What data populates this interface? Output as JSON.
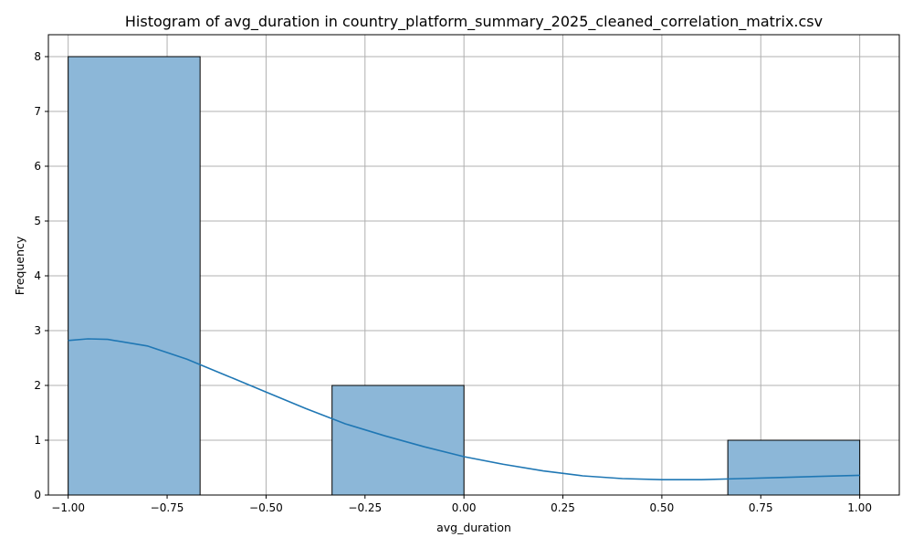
{
  "chart_data": {
    "type": "bar",
    "title": "Histogram of avg_duration in country_platform_summary_2025_cleaned_correlation_matrix.csv",
    "xlabel": "avg_duration",
    "ylabel": "Frequency",
    "xlim": [
      -1.05,
      1.1
    ],
    "ylim": [
      0,
      8.4
    ],
    "xticks": [
      -1.0,
      -0.75,
      -0.5,
      -0.25,
      0.0,
      0.25,
      0.5,
      0.75,
      1.0
    ],
    "xtick_labels": [
      "−1.00",
      "−0.75",
      "−0.50",
      "−0.25",
      "0.00",
      "0.25",
      "0.50",
      "0.75",
      "1.00"
    ],
    "yticks": [
      0,
      1,
      2,
      3,
      4,
      5,
      6,
      7,
      8
    ],
    "ytick_labels": [
      "0",
      "1",
      "2",
      "3",
      "4",
      "5",
      "6",
      "7",
      "8"
    ],
    "grid": true,
    "bins": [
      {
        "x0": -1.0,
        "x1": -0.6667,
        "count": 8
      },
      {
        "x0": -0.6667,
        "x1": -0.3333,
        "count": 0
      },
      {
        "x0": -0.3333,
        "x1": 0.0,
        "count": 2
      },
      {
        "x0": 0.0,
        "x1": 0.3333,
        "count": 0
      },
      {
        "x0": 0.3333,
        "x1": 0.6667,
        "count": 0
      },
      {
        "x0": 0.6667,
        "x1": 1.0,
        "count": 1
      }
    ],
    "kde": {
      "x": [
        -1.0,
        -0.95,
        -0.9,
        -0.8,
        -0.7,
        -0.6,
        -0.5,
        -0.4,
        -0.3,
        -0.2,
        -0.1,
        0.0,
        0.1,
        0.2,
        0.3,
        0.4,
        0.5,
        0.6,
        0.7,
        0.8,
        0.9,
        1.0
      ],
      "y": [
        2.82,
        2.85,
        2.84,
        2.72,
        2.48,
        2.18,
        1.88,
        1.58,
        1.3,
        1.08,
        0.88,
        0.7,
        0.56,
        0.44,
        0.35,
        0.3,
        0.28,
        0.28,
        0.3,
        0.32,
        0.34,
        0.36
      ]
    },
    "colors": {
      "bar_fill": "#8cb7d8",
      "bar_edge": "#000000",
      "kde_line": "#1f77b4",
      "grid": "#b0b0b0"
    }
  }
}
